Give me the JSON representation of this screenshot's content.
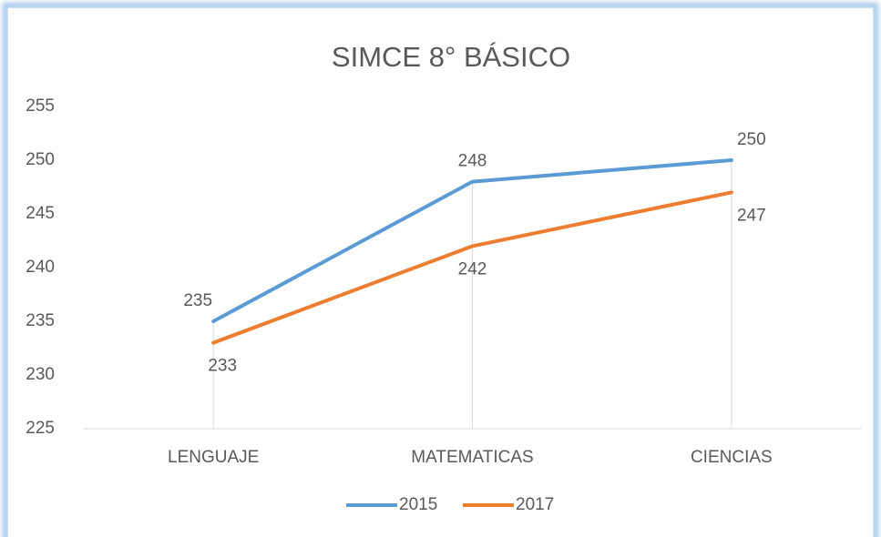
{
  "chart_data": {
    "type": "line",
    "title": "SIMCE 8° BÁSICO",
    "categories": [
      "LENGUAJE",
      "MATEMATICAS",
      "CIENCIAS"
    ],
    "series": [
      {
        "name": "2015",
        "color": "#5b9bd5",
        "values": [
          235,
          248,
          250
        ]
      },
      {
        "name": "2017",
        "color": "#ed7d31",
        "values": [
          233,
          242,
          247
        ]
      }
    ],
    "ylim": [
      225,
      255
    ],
    "yticks": [
      225,
      230,
      235,
      240,
      245,
      250,
      255
    ],
    "legend": "bottom",
    "grid": false
  }
}
